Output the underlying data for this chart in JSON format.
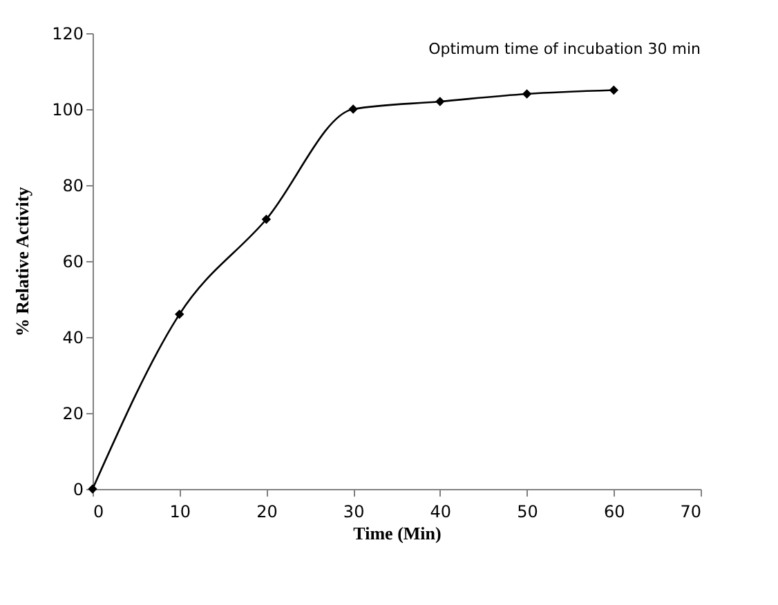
{
  "chart_data": {
    "type": "line",
    "x": [
      0,
      10,
      20,
      30,
      40,
      50,
      60
    ],
    "series": [
      {
        "color": "#000000",
        "values": [
          0,
          46,
          71,
          100,
          102,
          104,
          105
        ]
      }
    ],
    "xlabel": "Time (Min)",
    "ylabel": "% Relative Activity",
    "xlim": [
      0,
      70
    ],
    "xticks": [
      0,
      10,
      20,
      30,
      40,
      50,
      60,
      70
    ],
    "ylim": [
      0,
      120
    ],
    "yticks": [
      0,
      20,
      40,
      60,
      80,
      100,
      120
    ],
    "annotations": [
      "Optimum time of incubation 30 min"
    ],
    "marker": "diamond",
    "line_style": "solid",
    "grid": false
  }
}
